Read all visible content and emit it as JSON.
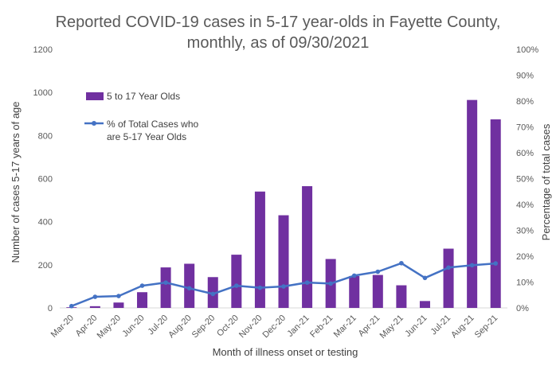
{
  "chart_data": {
    "type": "bar",
    "title_lines": [
      "Reported COVID-19 cases in 5-17 year-olds in Fayette County,",
      "monthly, as of 09/30/2021"
    ],
    "xlabel": "Month of illness onset or testing",
    "ylabel": "Number of cases 5-17 years of age",
    "y2label": "Percentage of total cases",
    "ylim": [
      0,
      1200
    ],
    "yticks": [
      "0",
      "200",
      "400",
      "600",
      "800",
      "1000",
      "1200"
    ],
    "y2lim": [
      0,
      100
    ],
    "y2ticks": [
      "0%",
      "10%",
      "20%",
      "30%",
      "40%",
      "50%",
      "60%",
      "70%",
      "80%",
      "90%",
      "100%"
    ],
    "categories": [
      "Mar-20",
      "Apr-20",
      "May-20",
      "Jun-20",
      "Jul-20",
      "Aug-20",
      "Sep-20",
      "Oct-20",
      "Nov-20",
      "Dec-20",
      "Jan-21",
      "Feb-21",
      "Mar-21",
      "Apr-21",
      "May-21",
      "Jun-21",
      "Jul-21",
      "Aug-21",
      "Sep-21"
    ],
    "grid": false,
    "legend_position": "top-left",
    "series": [
      {
        "name": "5 to 17 Year Olds",
        "type": "bar",
        "axis": "left",
        "color": "#7030A0",
        "values": [
          3,
          8,
          25,
          73,
          188,
          205,
          143,
          247,
          540,
          430,
          565,
          227,
          148,
          153,
          105,
          32,
          275,
          965,
          875
        ]
      },
      {
        "name": "% of Total Cases who are 5-17 Year Olds",
        "name_lines": [
          "% of Total Cases who",
          "are 5-17 Year Olds"
        ],
        "type": "line",
        "axis": "right",
        "color": "#4472C4",
        "values": [
          0.7,
          4.3,
          4.6,
          8.6,
          9.8,
          7.6,
          5.4,
          8.6,
          7.8,
          8.3,
          9.8,
          9.4,
          12.5,
          14.0,
          17.3,
          11.6,
          15.6,
          16.5,
          17.2
        ]
      }
    ]
  }
}
